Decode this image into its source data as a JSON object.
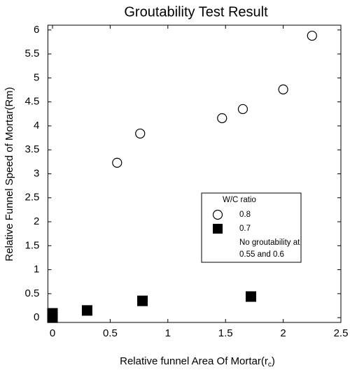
{
  "chart_data": {
    "type": "scatter",
    "title": "Groutability Test Result",
    "xlabel": {
      "text": "Relative funnel Area Of Mortar(r",
      "subscript": "c",
      "suffix": ")"
    },
    "ylabel": "Relative Funnel Speed of Mortar(Rm)",
    "xlim": [
      -0.04,
      2.5
    ],
    "ylim": [
      -0.1,
      6.1
    ],
    "xticks": [
      0,
      0.5,
      1,
      1.5,
      2,
      2.5
    ],
    "yticks": [
      0,
      0.5,
      1,
      1.5,
      2,
      2.5,
      3,
      3.5,
      4,
      4.5,
      5,
      5.5,
      6
    ],
    "legend_title": "W/C ratio",
    "series": [
      {
        "name": "0.8",
        "marker": "open-circle",
        "color": "#000000",
        "x": [
          0.56,
          0.76,
          1.47,
          1.65,
          2.0,
          2.25
        ],
        "values": [
          3.23,
          3.84,
          4.16,
          4.35,
          4.76,
          5.88
        ]
      },
      {
        "name": "0.7",
        "marker": "filled-square",
        "color": "#000000",
        "x": [
          0,
          0,
          0.3,
          0.78,
          1.72
        ],
        "values": [
          0.09,
          0,
          0.15,
          0.35,
          0.44
        ]
      }
    ],
    "legend_note": [
      "No groutability at",
      "0.55 and 0.6"
    ]
  }
}
